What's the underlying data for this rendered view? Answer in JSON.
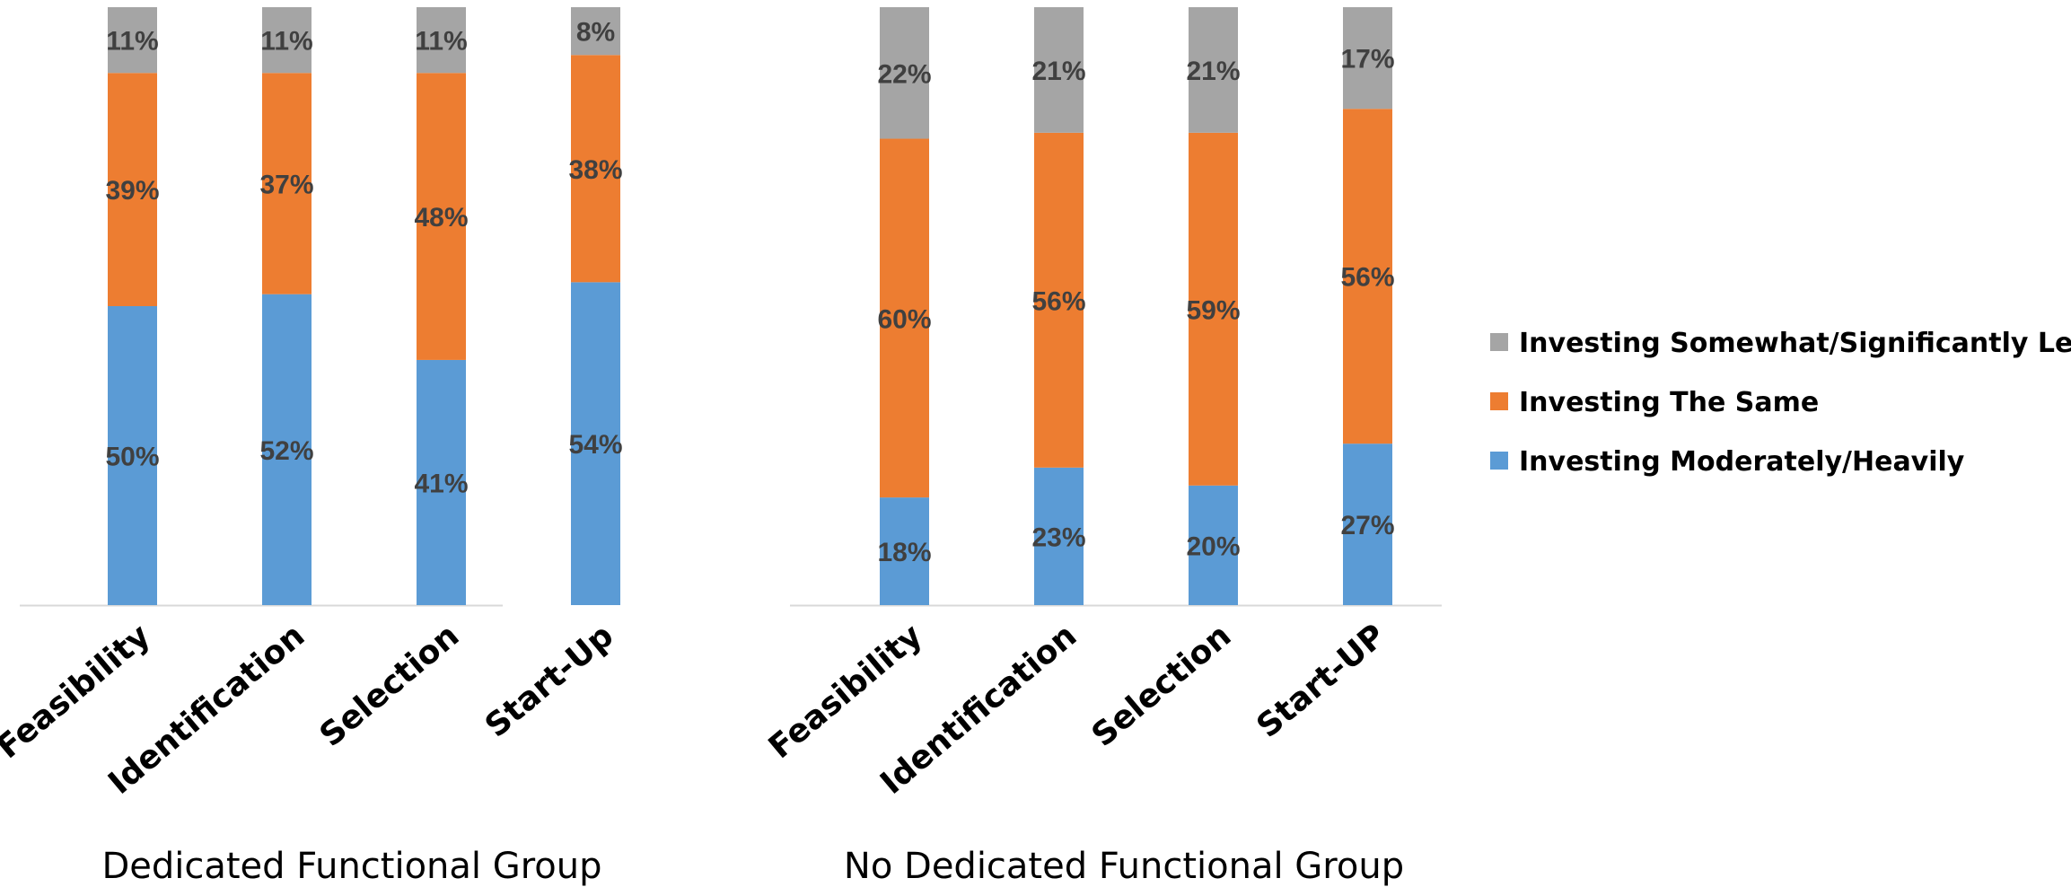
{
  "chart_data": {
    "type": "bar",
    "stacked": true,
    "ylim": [
      0,
      100
    ],
    "grid": false,
    "legend_position": "right",
    "series": [
      {
        "name": "Investing Moderately/Heavily",
        "color": "#5B9BD5",
        "values": [
          50,
          52,
          41,
          54,
          18,
          23,
          20,
          27
        ],
        "labels": [
          "50%",
          "52%",
          "41%",
          "54%",
          "18%",
          "23%",
          "20%",
          "27%"
        ]
      },
      {
        "name": "Investing The Same",
        "color": "#ED7D31",
        "values": [
          39,
          37,
          48,
          38,
          60,
          56,
          59,
          56
        ],
        "labels": [
          "39%",
          "37%",
          "48%",
          "38%",
          "60%",
          "56%",
          "59%",
          "56%"
        ]
      },
      {
        "name": "Investing Somewhat/Significantly Less",
        "color": "#A5A5A5",
        "values": [
          11,
          11,
          11,
          8,
          22,
          21,
          21,
          17
        ],
        "labels": [
          "11%",
          "11%",
          "11%",
          "8%",
          "22%",
          "21%",
          "21%",
          "17%"
        ]
      }
    ],
    "categories": [
      "Feasibility",
      "Identification",
      "Selection",
      "Start-Up",
      "Feasibility",
      "Identification",
      "Selection",
      "Start-UP"
    ],
    "groups": [
      {
        "name": "Dedicated Functional Group",
        "categories": [
          "Feasibility",
          "Identification",
          "Selection",
          "Start-Up"
        ]
      },
      {
        "name": "No Dedicated Functional Group",
        "categories": [
          "Feasibility",
          "Identification",
          "Selection",
          "Start-UP"
        ]
      }
    ]
  }
}
